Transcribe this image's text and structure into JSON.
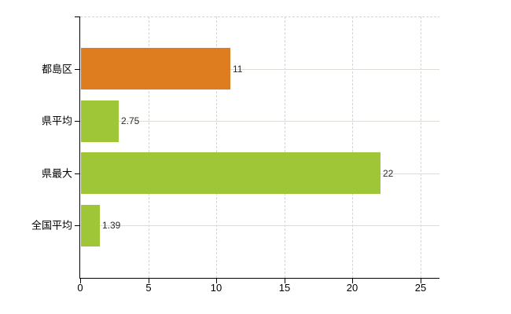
{
  "chart_data": {
    "type": "bar",
    "orientation": "horizontal",
    "title": "",
    "xlabel": "",
    "ylabel": "",
    "categories": [
      "都島区",
      "県平均",
      "県最大",
      "全国平均"
    ],
    "values": [
      11,
      2.75,
      22,
      1.39
    ],
    "value_labels": [
      "11",
      "2.75",
      "22",
      "1.39"
    ],
    "bar_colors": [
      "#de7d1f",
      "#9fc636",
      "#9fc636",
      "#9fc636"
    ],
    "xlim": [
      0,
      26.4
    ],
    "x_ticks": [
      0,
      5,
      10,
      15,
      20,
      25
    ],
    "grid": {
      "vertical": "dashed at each x tick except 0",
      "horizontal": "solid at each category center",
      "top_border": "dashed"
    },
    "legend_position": "none"
  },
  "colors": {
    "bar_orange": "#de7d1f",
    "bar_green": "#9fc636",
    "axis": "#000000",
    "grid_vertical": "#d4d4da",
    "grid_horizontal": "#d9dfd5",
    "background": "#ffffff",
    "category_text": "#000000",
    "tick_text": "#000000",
    "value_text": "#2b2b2b"
  }
}
